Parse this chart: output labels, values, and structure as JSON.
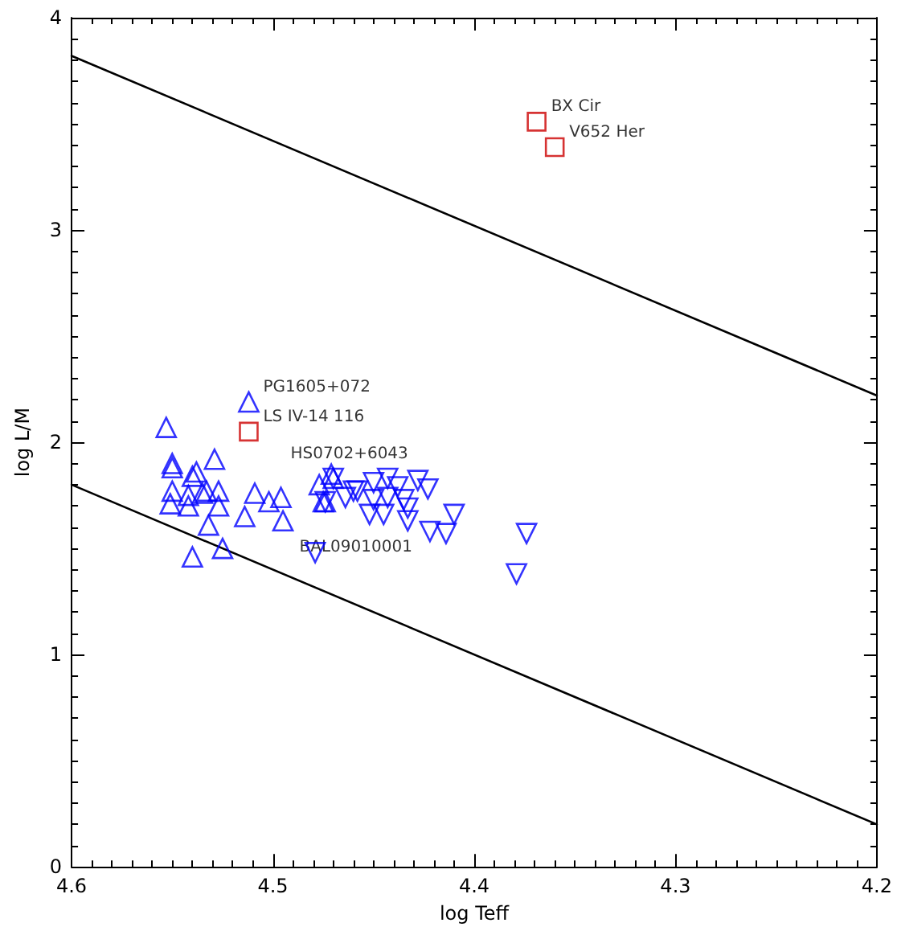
{
  "chart_data": {
    "type": "scatter",
    "xlabel": "log Teff",
    "ylabel": "log L/M",
    "xlim": [
      4.6,
      4.2
    ],
    "xticks": [
      4.6,
      4.5,
      4.4,
      4.3,
      4.2
    ],
    "ylim": [
      0,
      4
    ],
    "yticks": [
      0,
      1,
      2,
      3,
      4
    ],
    "grid": false,
    "series": [
      {
        "marker": "triangle",
        "color": "#0000ff",
        "x": [
          4.512,
          4.553,
          4.55,
          4.55,
          4.529,
          4.54,
          4.538,
          4.55,
          4.551,
          4.542,
          4.542,
          4.535,
          4.533,
          4.527,
          4.527,
          4.509,
          4.502,
          4.496,
          4.514,
          4.495,
          4.532,
          4.54,
          4.525,
          4.471,
          4.477,
          4.475,
          4.47,
          4.474
        ],
        "values": [
          2.19,
          2.07,
          1.9,
          1.88,
          1.92,
          1.84,
          1.86,
          1.77,
          1.71,
          1.75,
          1.7,
          1.76,
          1.77,
          1.77,
          1.7,
          1.76,
          1.72,
          1.74,
          1.65,
          1.63,
          1.61,
          1.46,
          1.5,
          1.85,
          1.8,
          1.72,
          1.83,
          1.72
        ]
      },
      {
        "marker": "triangle-down",
        "color": "#0000ff",
        "x": [
          4.47,
          4.46,
          4.458,
          4.464,
          4.45,
          4.443,
          4.438,
          4.428,
          4.423,
          4.45,
          4.443,
          4.435,
          4.433,
          4.452,
          4.445,
          4.433,
          4.41,
          4.422,
          4.414,
          4.374,
          4.479,
          4.379,
          4.474
        ],
        "values": [
          1.83,
          1.77,
          1.77,
          1.74,
          1.81,
          1.83,
          1.79,
          1.82,
          1.78,
          1.73,
          1.74,
          1.73,
          1.69,
          1.66,
          1.66,
          1.63,
          1.66,
          1.58,
          1.57,
          1.57,
          1.48,
          1.38,
          1.72
        ]
      },
      {
        "marker": "square",
        "color": "#cc0000",
        "x": [
          4.369,
          4.36,
          4.512
        ],
        "values": [
          3.51,
          3.39,
          2.05
        ]
      },
      {
        "type": "line",
        "marker": "none",
        "color": "#000000",
        "x": [
          4.6,
          4.2
        ],
        "values": [
          3.82,
          2.22
        ]
      },
      {
        "type": "line",
        "marker": "none",
        "color": "#000000",
        "x": [
          4.6,
          4.2
        ],
        "values": [
          1.8,
          0.2
        ]
      }
    ],
    "annotations": [
      {
        "text": "PG1605+072",
        "x": 4.512,
        "y": 2.19
      },
      {
        "text": "LS IV-14 116",
        "x": 4.512,
        "y": 2.05
      },
      {
        "text": "HS0702+6043",
        "x": 4.47,
        "y": 1.83
      },
      {
        "text": "BAL09010001",
        "x": 4.422,
        "y": 1.58
      },
      {
        "text": "BX Cir",
        "x": 4.369,
        "y": 3.51
      },
      {
        "text": "V652 Her",
        "x": 4.36,
        "y": 3.39
      }
    ]
  }
}
